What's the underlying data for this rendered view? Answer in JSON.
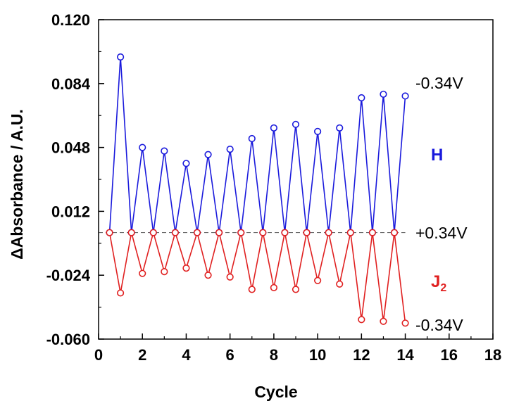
{
  "chart_data": {
    "type": "line",
    "xlabel": "Cycle",
    "ylabel": "ΔAbsorbance / A.U.",
    "xlim": [
      0,
      18
    ],
    "ylim": [
      -0.06,
      0.12
    ],
    "xticks": [
      "0",
      "2",
      "4",
      "6",
      "8",
      "10",
      "12",
      "14",
      "16",
      "18"
    ],
    "yticks": [
      "-0.060",
      "-0.024",
      "0.012",
      "0.048",
      "0.084",
      "0.120"
    ],
    "grid": false,
    "baseline": 0.0,
    "series": [
      {
        "name": "H",
        "color": "#1a1adc",
        "x": [
          0.5,
          1,
          1.5,
          2,
          2.5,
          3,
          3.5,
          4,
          4.5,
          5,
          5.5,
          6,
          6.5,
          7,
          7.5,
          8,
          8.5,
          9,
          9.5,
          10,
          10.5,
          11,
          11.5,
          12,
          12.5,
          13,
          13.5,
          14
        ],
        "y": [
          0.0,
          0.099,
          0.0,
          0.048,
          0.0,
          0.046,
          0.0,
          0.039,
          0.0,
          0.044,
          0.0,
          0.047,
          0.0,
          0.053,
          0.0,
          0.059,
          0.0,
          0.061,
          0.0,
          0.057,
          0.0,
          0.059,
          0.0,
          0.076,
          0.0,
          0.078,
          0.0,
          0.077
        ]
      },
      {
        "name": "J",
        "name_subscript": "2",
        "color": "#e02020",
        "x": [
          0.5,
          1,
          1.5,
          2,
          2.5,
          3,
          3.5,
          4,
          4.5,
          5,
          5.5,
          6,
          6.5,
          7,
          7.5,
          8,
          8.5,
          9,
          9.5,
          10,
          10.5,
          11,
          11.5,
          12,
          12.5,
          13,
          13.5,
          14
        ],
        "y": [
          0.0,
          -0.034,
          0.0,
          -0.023,
          0.0,
          -0.022,
          0.0,
          -0.02,
          0.0,
          -0.024,
          0.0,
          -0.025,
          0.0,
          -0.032,
          0.0,
          -0.031,
          0.0,
          -0.032,
          0.0,
          -0.027,
          0.0,
          -0.029,
          0.0,
          -0.049,
          0.0,
          -0.05,
          0.0,
          -0.051
        ]
      }
    ],
    "annotations": [
      "-0.34V",
      "+0.34V",
      "-0.34V"
    ]
  }
}
